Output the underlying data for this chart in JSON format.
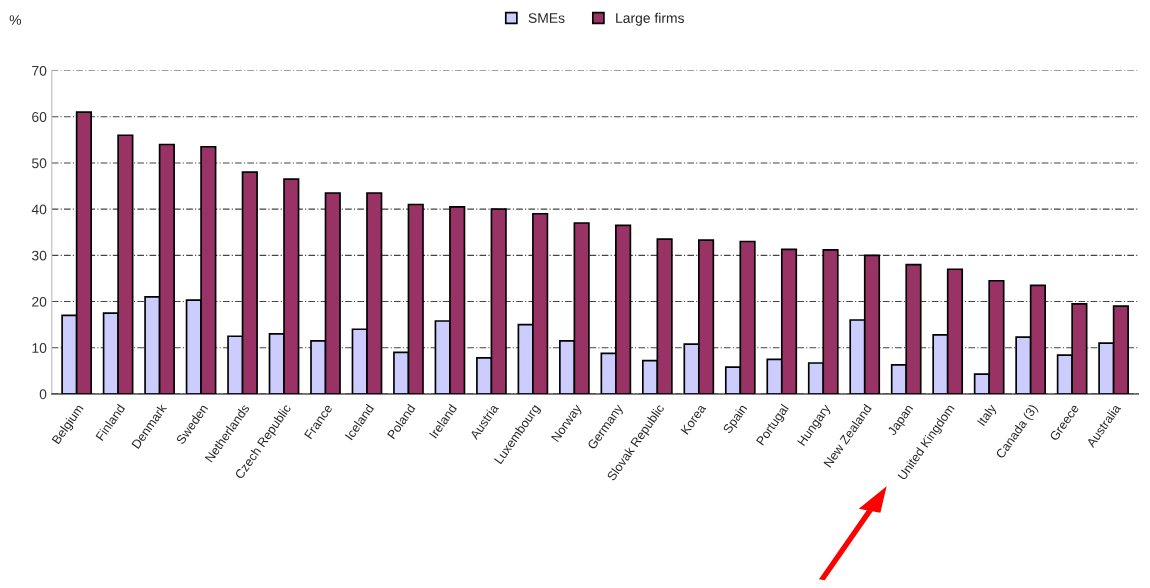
{
  "chart_data": {
    "type": "bar",
    "ylabel": "%",
    "categories": [
      "Belgium",
      "Finland",
      "Denmark",
      "Sweden",
      "Netherlands",
      "Czech Republic",
      "France",
      "Iceland",
      "Poland",
      "Ireland",
      "Austria",
      "Luxembourg",
      "Norway",
      "Germany",
      "Slovak Republic",
      "Korea",
      "Spain",
      "Portugal",
      "Hungary",
      "New Zealand",
      "Japan",
      "United Kingdom",
      "Italy",
      "Canada (3)",
      "Greece",
      "Australia"
    ],
    "series": [
      {
        "name": "SMEs",
        "color": "#ccccff",
        "values": [
          17,
          17.5,
          21,
          20.3,
          12.5,
          13,
          11.5,
          14,
          9,
          15.8,
          7.8,
          15,
          11.5,
          8.8,
          7.2,
          10.8,
          5.8,
          7.5,
          6.7,
          16,
          6.3,
          12.8,
          4.3,
          12.3,
          8.4,
          11
        ]
      },
      {
        "name": "Large firms",
        "color": "#993366",
        "values": [
          61,
          56,
          54,
          53.5,
          48,
          46.5,
          43.5,
          43.5,
          41,
          40.5,
          40,
          39,
          37,
          36.5,
          33.5,
          33.3,
          33,
          31.3,
          31.2,
          30,
          28,
          27,
          24.5,
          23.5,
          19.5,
          19
        ]
      }
    ],
    "ylim": [
      0,
      70
    ],
    "yticks": [
      0,
      10,
      20,
      30,
      40,
      50,
      60,
      70
    ],
    "grid": "y",
    "legend": "top"
  }
}
